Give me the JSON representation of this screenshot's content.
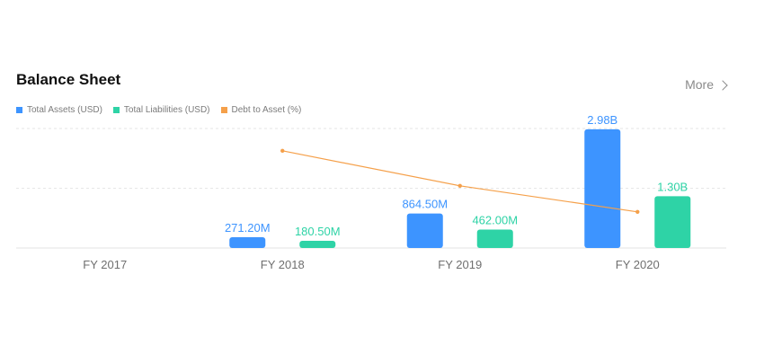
{
  "header": {
    "title": "Balance Sheet",
    "more_label": "More",
    "more_icon": "chevron-right-icon"
  },
  "colors": {
    "assets": "#3d94ff",
    "liabilities": "#2ed3a6",
    "ratio": "#f5a04a",
    "grid": "#e6e6e6"
  },
  "chart_data": {
    "type": "bar",
    "categories": [
      "FY 2017",
      "FY 2018",
      "FY 2019",
      "FY 2020"
    ],
    "series": [
      {
        "name": "Total Assets (USD)",
        "kind": "bar",
        "values": [
          null,
          271200000,
          864500000,
          2980000000
        ],
        "labels": [
          "",
          "271.20M",
          "864.50M",
          "2.98B"
        ]
      },
      {
        "name": "Total Liabilities (USD)",
        "kind": "bar",
        "values": [
          null,
          180500000,
          462000000,
          1300000000
        ],
        "labels": [
          "",
          "180.50M",
          "462.00M",
          "1.30B"
        ]
      },
      {
        "name": "Debt to Asset (%)",
        "kind": "line",
        "values": [
          null,
          66.6,
          53.4,
          43.6
        ]
      }
    ],
    "ylim_bar": [
      0,
      3000000000
    ],
    "ylim_line": [
      30,
      75
    ],
    "grid": true,
    "legend": "top-left"
  }
}
